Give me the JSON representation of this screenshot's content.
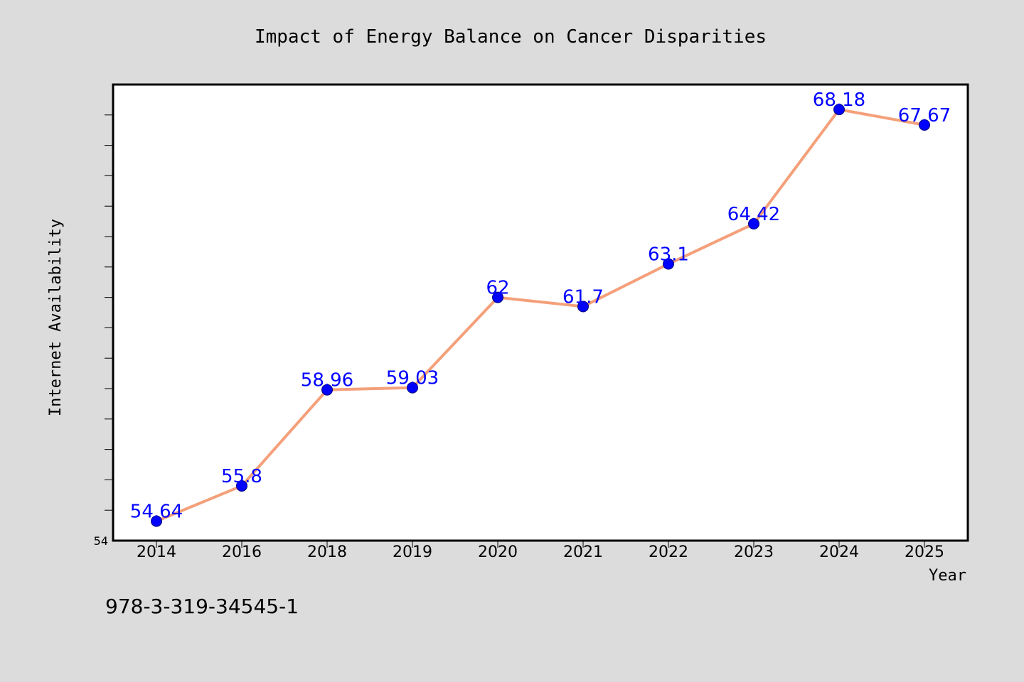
{
  "chart_data": {
    "type": "line",
    "title": "Impact of Energy Balance on Cancer Disparities",
    "xlabel": "Year",
    "ylabel": "Internet Availability",
    "categories": [
      "2014",
      "2016",
      "2018",
      "2019",
      "2020",
      "2021",
      "2022",
      "2023",
      "2024",
      "2025"
    ],
    "series": [
      {
        "values": [
          54.64,
          55.8,
          58.96,
          59.03,
          62,
          61.7,
          63.1,
          64.42,
          68.18,
          67.67
        ],
        "line_color": "#f4a07a",
        "marker_color": "#0000ff"
      }
    ],
    "data_labels": [
      "54.64",
      "55.8",
      "58.96",
      "59.03",
      "62",
      "61.7",
      "63.1",
      "64.42",
      "68.18",
      "67.67"
    ],
    "ylim": [
      54,
      69.0
    ],
    "ytick_labels": [
      "54"
    ],
    "grid": false,
    "legend": "none"
  },
  "footer": {
    "isbn": "978-3-319-34545-1"
  },
  "colors": {
    "background": "#dcdcdc",
    "plot_background": "#ffffff",
    "line": "#f4a07a",
    "marker": "#0000ff",
    "data_label": "#0000ff"
  }
}
